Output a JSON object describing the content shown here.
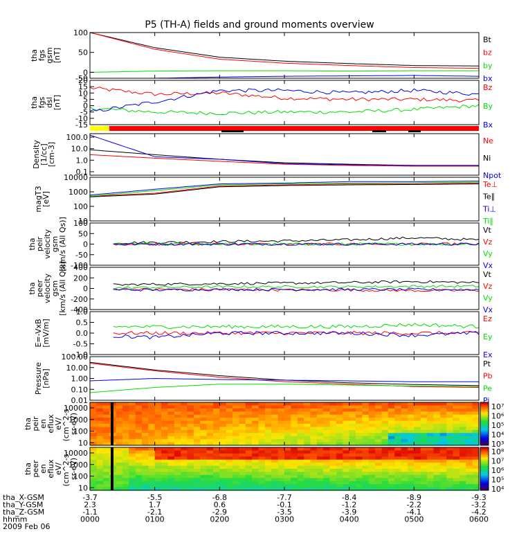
{
  "title": "P5 (TH-A) fields and ground moments overview",
  "colors": {
    "black": "#000000",
    "red": "#ff0000",
    "green": "#00dd00",
    "blue": "#0000ee",
    "yellow": "#ffff00"
  },
  "chart_data": [
    {
      "type": "line",
      "panel": "fgs_gsm",
      "ylabel": [
        "tha",
        "fgs",
        "gsm",
        "[nT]"
      ],
      "ylim": [
        -15,
        100
      ],
      "yticks": [
        "100",
        "50",
        "0",
        "-50"
      ],
      "x": [
        "0000",
        "0100",
        "0200",
        "0300",
        "0400",
        "0500",
        "0600"
      ],
      "series": [
        {
          "name": "Bt",
          "color": "#000000",
          "values": [
            100,
            62,
            38,
            28,
            22,
            17,
            16
          ]
        },
        {
          "name": "bz",
          "color": "#ff0000",
          "values": [
            100,
            58,
            33,
            23,
            17,
            12,
            10
          ]
        },
        {
          "name": "by",
          "color": "#00dd00",
          "values": [
            0,
            3,
            4,
            4,
            3,
            4,
            4
          ]
        },
        {
          "name": "bx",
          "color": "#0000ee",
          "values": [
            -25,
            -15,
            -12,
            -10,
            -9,
            -8,
            -10
          ]
        }
      ]
    },
    {
      "type": "line",
      "panel": "fgs_dsl",
      "ylabel": [
        "tha",
        "fgs",
        "dsl",
        "[nT]"
      ],
      "ylim": [
        -15,
        20
      ],
      "yticks": [
        "20",
        "15",
        "10",
        "5",
        "0",
        "-5",
        "-10",
        "-15"
      ],
      "x": [
        "0000",
        "0100",
        "0200",
        "0300",
        "0400",
        "0500",
        "0600"
      ],
      "series": [
        {
          "name": "Bz",
          "color": "#ff0000",
          "values": [
            14,
            9,
            10,
            6,
            5,
            5,
            4
          ]
        },
        {
          "name": "By",
          "color": "#00dd00",
          "values": [
            -2,
            -5,
            -6,
            -5,
            -5,
            -3,
            0
          ]
        },
        {
          "name": "Bx",
          "color": "#0000ee",
          "values": [
            -5,
            3,
            12,
            12,
            10,
            12,
            9
          ]
        }
      ]
    },
    {
      "type": "line",
      "panel": "density",
      "ylabel": [
        "Density",
        "[1/cc]",
        "[cm-3]"
      ],
      "scale": "log",
      "ylim": [
        0.05,
        200
      ],
      "yticks": [
        "100.0",
        "10.0",
        "1.0",
        "0.1"
      ],
      "x": [
        "0000",
        "0100",
        "0200",
        "0300",
        "0400",
        "0500",
        "0600"
      ],
      "series": [
        {
          "name": "Ne",
          "color": "#ff0000",
          "values": [
            3.0,
            1.5,
            0.8,
            0.45,
            0.35,
            0.3,
            0.3
          ]
        },
        {
          "name": "Ni",
          "color": "#000000",
          "values": [
            8.0,
            3.0,
            1.2,
            0.6,
            0.45,
            0.35,
            0.35
          ]
        },
        {
          "name": "Npot",
          "color": "#0000ee",
          "values": [
            150,
            2.0,
            1.2,
            0.5,
            0.4,
            0.35,
            0.35
          ]
        }
      ]
    },
    {
      "type": "line",
      "panel": "temperature",
      "ylabel": [
        "magT3",
        "[eV]"
      ],
      "scale": "log",
      "ylim": [
        10,
        10000
      ],
      "yticks": [
        "10000",
        "1000",
        "100",
        "10"
      ],
      "x": [
        "0000",
        "0100",
        "0200",
        "0300",
        "0400",
        "0500",
        "0600"
      ],
      "series": [
        {
          "name": "Te⊥",
          "color": "#ff0000",
          "values": [
            500,
            800,
            2500,
            3000,
            3500,
            3500,
            4000
          ]
        },
        {
          "name": "Te∥",
          "color": "#000000",
          "values": [
            450,
            700,
            2200,
            2700,
            3000,
            3200,
            3500
          ]
        },
        {
          "name": "Ti⊥",
          "color": "#0000ee",
          "values": [
            600,
            1500,
            3500,
            4000,
            5000,
            5000,
            5500
          ]
        },
        {
          "name": "Ti∥",
          "color": "#00dd00",
          "values": [
            500,
            1200,
            3000,
            3500,
            4000,
            4200,
            4500
          ]
        }
      ]
    },
    {
      "type": "line",
      "panel": "peir_velocity",
      "ylabel": [
        "tha",
        "peir",
        "velocity",
        "gsm",
        "[km/s (All Qs)]"
      ],
      "ylim": [
        -100,
        100
      ],
      "yticks": [
        "100",
        "50",
        "0",
        "-50",
        "-100"
      ],
      "x": [
        "0000",
        "0100",
        "0200",
        "0300",
        "0400",
        "0500",
        "0600"
      ],
      "series": [
        {
          "name": "Vt",
          "color": "#000000",
          "values": [
            5,
            8,
            12,
            15,
            20,
            30,
            20
          ]
        },
        {
          "name": "Vz",
          "color": "#ff0000",
          "values": [
            0,
            0,
            0,
            0,
            0,
            0,
            0
          ]
        },
        {
          "name": "Vy",
          "color": "#00dd00",
          "values": [
            0,
            0,
            0,
            0,
            0,
            0,
            0
          ]
        },
        {
          "name": "Vx",
          "color": "#0000ee",
          "values": [
            0,
            0,
            0,
            0,
            0,
            0,
            0
          ]
        }
      ]
    },
    {
      "type": "line",
      "panel": "peer_velocity",
      "ylabel": [
        "tha",
        "peer",
        "velocity",
        "gsm",
        "[km/s (All Qs)]"
      ],
      "ylim": [
        -400,
        400
      ],
      "yticks": [
        "400",
        "200",
        "0",
        "-200",
        "-400"
      ],
      "x": [
        "0000",
        "0100",
        "0200",
        "0300",
        "0400",
        "0500",
        "0600"
      ],
      "series": [
        {
          "name": "Vt",
          "color": "#000000",
          "values": [
            60,
            80,
            90,
            100,
            110,
            130,
            110
          ]
        },
        {
          "name": "Vz",
          "color": "#ff0000",
          "values": [
            0,
            -20,
            -20,
            -30,
            -30,
            -40,
            -40
          ]
        },
        {
          "name": "Vy",
          "color": "#00dd00",
          "values": [
            0,
            20,
            30,
            30,
            30,
            40,
            40
          ]
        },
        {
          "name": "Vx",
          "color": "#0000ee",
          "values": [
            -20,
            -30,
            -20,
            -20,
            -20,
            -20,
            -20
          ]
        }
      ]
    },
    {
      "type": "line",
      "panel": "efield",
      "ylabel": [
        "E=-VxB",
        "[mV/m]"
      ],
      "ylim": [
        -1.0,
        1.0
      ],
      "yticks": [
        "1.0",
        "0.5",
        "0.0",
        "-0.5",
        "-1.0"
      ],
      "x": [
        "0000",
        "0100",
        "0200",
        "0300",
        "0400",
        "0500",
        "0600"
      ],
      "series": [
        {
          "name": "Ez",
          "color": "#ff0000",
          "values": [
            0,
            0,
            0,
            0,
            0,
            0,
            0
          ]
        },
        {
          "name": "Ey",
          "color": "#00dd00",
          "values": [
            0.3,
            0.3,
            0.3,
            0.3,
            0.3,
            0.4,
            0.3
          ]
        },
        {
          "name": "Ex",
          "color": "#0000ee",
          "values": [
            -0.1,
            -0.2,
            0,
            0,
            0,
            -0.1,
            0
          ]
        }
      ]
    },
    {
      "type": "line",
      "panel": "pressure",
      "ylabel": [
        "Pressure",
        "[nPa]"
      ],
      "scale": "log",
      "ylim": [
        0.01,
        100
      ],
      "yticks": [
        "100.00",
        "10.00",
        "1.00",
        "0.10",
        "0.01"
      ],
      "x": [
        "0000",
        "0100",
        "0200",
        "0300",
        "0400",
        "0500",
        "0600"
      ],
      "series": [
        {
          "name": "Pt",
          "color": "#000000",
          "values": [
            30,
            6,
            1.8,
            0.7,
            0.4,
            0.28,
            0.22
          ]
        },
        {
          "name": "Pb",
          "color": "#ff0000",
          "values": [
            25,
            5,
            1.3,
            0.5,
            0.3,
            0.18,
            0.15
          ]
        },
        {
          "name": "Pe",
          "color": "#00dd00",
          "values": [
            0.05,
            0.15,
            0.3,
            0.3,
            0.25,
            0.2,
            0.18
          ]
        },
        {
          "name": "Pi",
          "color": "#0000ee",
          "values": [
            0.6,
            1.0,
            0.8,
            0.7,
            0.6,
            0.5,
            0.5
          ]
        }
      ]
    },
    {
      "type": "heatmap",
      "panel": "peir_spectrogram",
      "ylabel": [
        "tha",
        "peir",
        "en",
        "eflux",
        "eV/",
        "(cm^2-s-",
        "sr-eV)"
      ],
      "scale": "log",
      "ylim": [
        6,
        30000
      ],
      "yticks": [
        "10000",
        "1000",
        "100",
        "10"
      ],
      "colorbar": {
        "ticks": [
          "10⁷",
          "10⁶",
          "10⁵",
          "10⁴",
          "10³"
        ]
      }
    },
    {
      "type": "heatmap",
      "panel": "peer_spectrogram",
      "ylabel": [
        "tha",
        "peer",
        "en",
        "eflux",
        "eV/",
        "(cm^2-s-",
        "sr-eV)"
      ],
      "scale": "log",
      "ylim": [
        6,
        30000
      ],
      "yticks": [
        "10000",
        "1000",
        "100",
        "10"
      ],
      "colorbar": {
        "ticks": [
          "10⁸",
          "10⁷",
          "10⁶",
          "10⁵",
          "10⁴"
        ]
      }
    }
  ],
  "footer": {
    "labels": [
      "tha_X-GSM",
      "tha_Y-GSM",
      "tha_Z-GSM",
      "hhmm",
      "2009 Feb 06"
    ],
    "columns": [
      [
        "-3.7",
        "2.3",
        "-1.1",
        "0000"
      ],
      [
        "-5.5",
        "1.7",
        "-2.1",
        "0100"
      ],
      [
        "-6.8",
        "0.6",
        "-2.9",
        "0200"
      ],
      [
        "-7.7",
        "-0.1",
        "-3.5",
        "0300"
      ],
      [
        "-8.4",
        "-1.2",
        "-3.9",
        "0400"
      ],
      [
        "-8.9",
        "-2.2",
        "-4.1",
        "0500"
      ],
      [
        "-9.3",
        "-3.2",
        "-4.2",
        "0600"
      ]
    ]
  }
}
